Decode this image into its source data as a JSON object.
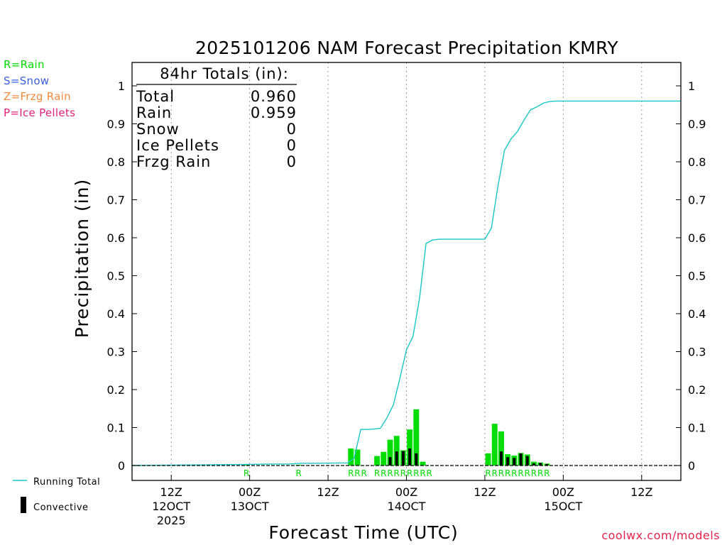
{
  "chart_data": {
    "type": "bar",
    "title": "2025101206 NAM Forecast Precipitation KMRY",
    "ylabel": "Precipitation (in)",
    "xlabel": "Forecast Time (UTC)",
    "ylim": [
      0,
      1.05
    ],
    "y_ticks": [
      0,
      0.1,
      0.2,
      0.3,
      0.4,
      0.5,
      0.6,
      0.7,
      0.8,
      0.9,
      1
    ],
    "y_tick_labels": [
      "0",
      "0.1",
      "0.2",
      "0.3",
      "0.4",
      "0.5",
      "0.6",
      "0.7",
      "0.8",
      "0.9",
      "1"
    ],
    "x_range_hours": [
      6,
      90
    ],
    "x_ticks": [
      {
        "hour": 12,
        "label": "12Z",
        "sub": "12OCT",
        "sub2": "2025"
      },
      {
        "hour": 24,
        "label": "00Z",
        "sub": "13OCT",
        "sub2": ""
      },
      {
        "hour": 36,
        "label": "12Z",
        "sub": "",
        "sub2": ""
      },
      {
        "hour": 48,
        "label": "00Z",
        "sub": "14OCT",
        "sub2": ""
      },
      {
        "hour": 60,
        "label": "12Z",
        "sub": "",
        "sub2": ""
      },
      {
        "hour": 72,
        "label": "00Z",
        "sub": "15OCT",
        "sub2": ""
      },
      {
        "hour": 84,
        "label": "12Z",
        "sub": "",
        "sub2": ""
      }
    ],
    "precip_types": [
      {
        "code": "R=Rain",
        "color": "#00dd00"
      },
      {
        "code": "S=Snow",
        "color": "#3a5fe0"
      },
      {
        "code": "Z=Frzg Rain",
        "color": "#f08a3c"
      },
      {
        "code": "P=Ice Pellets",
        "color": "#e0237a"
      }
    ],
    "series": [
      {
        "name": "Running Total",
        "color": "#19c6c6",
        "type": "line",
        "points": [
          [
            6,
            0
          ],
          [
            24,
            0.003
          ],
          [
            27,
            0.004
          ],
          [
            30,
            0.004
          ],
          [
            32,
            0.006
          ],
          [
            34,
            0.006
          ],
          [
            39,
            0.007
          ],
          [
            40,
            0.02
          ],
          [
            41,
            0.095
          ],
          [
            42,
            0.095
          ],
          [
            43,
            0.096
          ],
          [
            44,
            0.098
          ],
          [
            45,
            0.125
          ],
          [
            46,
            0.16
          ],
          [
            47,
            0.23
          ],
          [
            48,
            0.305
          ],
          [
            49,
            0.34
          ],
          [
            50,
            0.44
          ],
          [
            51,
            0.585
          ],
          [
            52,
            0.594
          ],
          [
            53,
            0.596
          ],
          [
            60,
            0.596
          ],
          [
            61,
            0.625
          ],
          [
            62,
            0.735
          ],
          [
            63,
            0.83
          ],
          [
            64,
            0.86
          ],
          [
            65,
            0.88
          ],
          [
            66,
            0.91
          ],
          [
            67,
            0.937
          ],
          [
            68,
            0.945
          ],
          [
            69,
            0.955
          ],
          [
            70,
            0.959
          ],
          [
            71,
            0.96
          ],
          [
            90,
            0.96
          ]
        ]
      },
      {
        "name": "",
        "color": "#00dd00",
        "type": "bar",
        "bars": [
          [
            24,
            0.003
          ],
          [
            32,
            0.002
          ],
          [
            40,
            0.045
          ],
          [
            41,
            0.042
          ],
          [
            44,
            0.025
          ],
          [
            45,
            0.036
          ],
          [
            46,
            0.068
          ],
          [
            47,
            0.078
          ],
          [
            48,
            0.04
          ],
          [
            49,
            0.095
          ],
          [
            50,
            0.148
          ],
          [
            51,
            0.01
          ],
          [
            61,
            0.032
          ],
          [
            62,
            0.11
          ],
          [
            63,
            0.09
          ],
          [
            64,
            0.03
          ],
          [
            65,
            0.026
          ],
          [
            66,
            0.033
          ],
          [
            67,
            0.029
          ],
          [
            68,
            0.01
          ],
          [
            69,
            0.008
          ],
          [
            70,
            0.005
          ]
        ]
      },
      {
        "name": "Convective",
        "color": "#000000",
        "type": "bar",
        "bars": [
          [
            46,
            0.022
          ],
          [
            47,
            0.037
          ],
          [
            48,
            0.038
          ],
          [
            49,
            0.045
          ],
          [
            50,
            0.032
          ],
          [
            63,
            0.037
          ],
          [
            64,
            0.022
          ],
          [
            65,
            0.02
          ],
          [
            66,
            0.032
          ],
          [
            67,
            0.025
          ],
          [
            68,
            0.006
          ],
          [
            69,
            0.007
          ],
          [
            70,
            0.004
          ]
        ]
      }
    ],
    "type_codes": [
      [
        24,
        "R"
      ],
      [
        32,
        "R"
      ],
      [
        40,
        "R"
      ],
      [
        41,
        "R"
      ],
      [
        42,
        "R"
      ],
      [
        44,
        "R"
      ],
      [
        45,
        "R"
      ],
      [
        46,
        "R"
      ],
      [
        47,
        "R"
      ],
      [
        48,
        "R"
      ],
      [
        49,
        "R"
      ],
      [
        50,
        "R"
      ],
      [
        51,
        "R"
      ],
      [
        52,
        "R"
      ],
      [
        61,
        "R"
      ],
      [
        62,
        "R"
      ],
      [
        63,
        "R"
      ],
      [
        64,
        "R"
      ],
      [
        65,
        "R"
      ],
      [
        66,
        "R"
      ],
      [
        67,
        "R"
      ],
      [
        68,
        "R"
      ],
      [
        69,
        "R"
      ],
      [
        70,
        "R"
      ]
    ],
    "totals": {
      "header": "84hr Totals (in):",
      "rows": [
        {
          "label": "Total",
          "value": "0.960"
        },
        {
          "label": "Rain",
          "value": "0.959"
        },
        {
          "label": "Snow",
          "value": "0"
        },
        {
          "label": "Ice Pellets",
          "value": "0"
        },
        {
          "label": "Frzg Rain",
          "value": "0"
        }
      ]
    },
    "legend": {
      "running_total": "Running Total",
      "convective": "Convective"
    }
  },
  "credit": "coolwx.com/models"
}
